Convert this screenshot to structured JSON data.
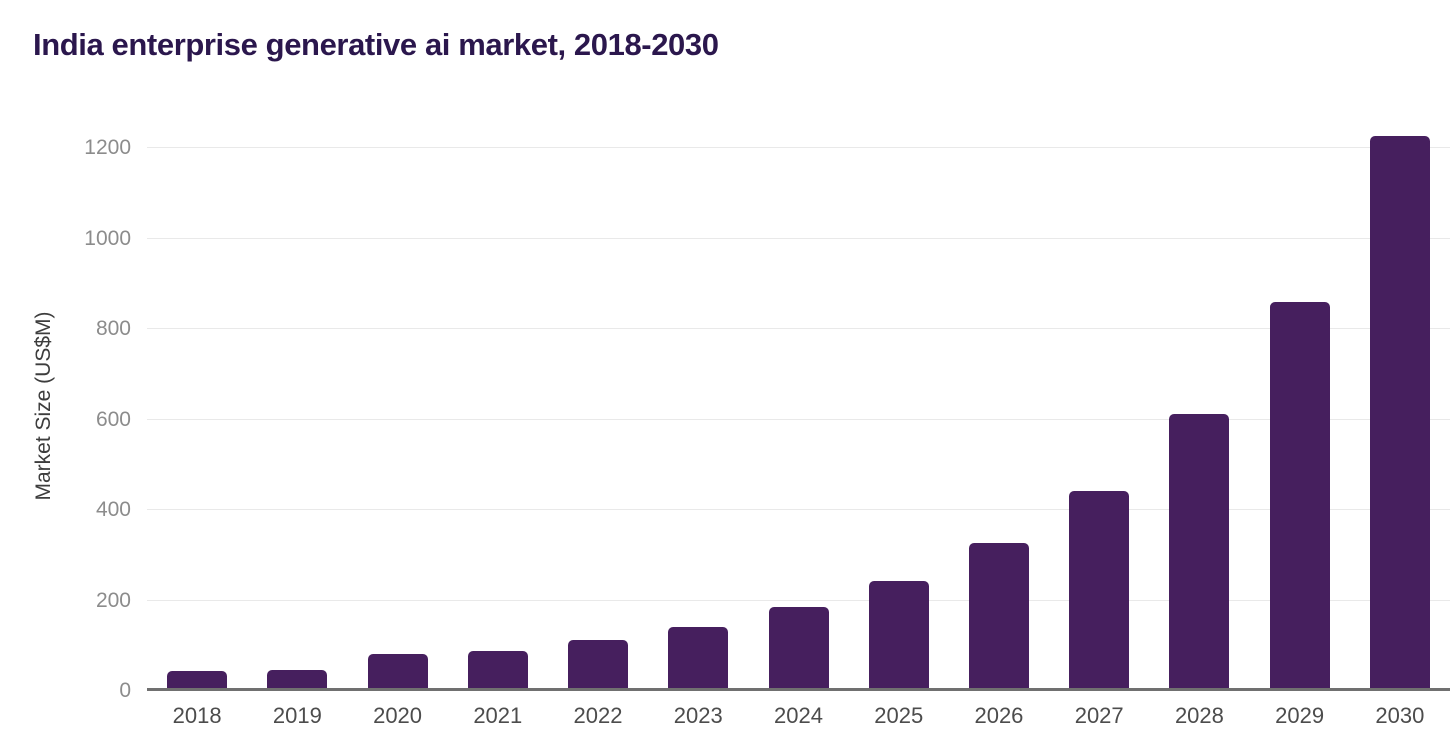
{
  "chart_data": {
    "type": "bar",
    "title": "India enterprise generative ai market, 2018-2030",
    "xlabel": "",
    "ylabel": "Market Size (US$M)",
    "categories": [
      "2018",
      "2019",
      "2020",
      "2021",
      "2022",
      "2023",
      "2024",
      "2025",
      "2026",
      "2027",
      "2028",
      "2029",
      "2030"
    ],
    "series": [
      {
        "name": "Market Size (US$M)",
        "values": [
          41,
          44,
          79,
          86,
          110,
          139,
          184,
          241,
          325,
          440,
          610,
          857,
          1225
        ]
      }
    ],
    "ylim": [
      0,
      1260
    ],
    "yticks": [
      0,
      200,
      400,
      600,
      800,
      1000,
      1200
    ],
    "grid": "horizontal",
    "legend_position": "none",
    "colors": {
      "bar": "#461f5e",
      "title": "#2b174d",
      "axis_line": "#707070",
      "gridline": "#e9e9e9",
      "y_tick_label": "#8c8c8c",
      "x_tick_label": "#4c4c4c",
      "y_axis_title": "#3d3d3d",
      "background": "#ffffff"
    }
  }
}
